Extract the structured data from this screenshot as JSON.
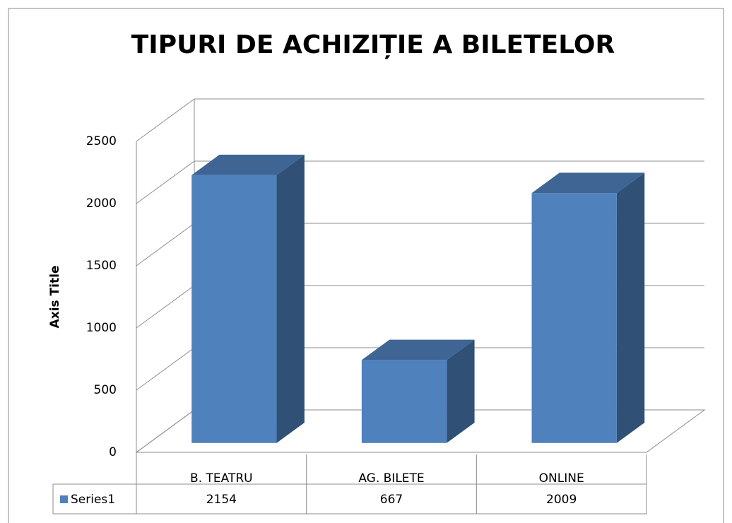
{
  "chart_data": {
    "type": "bar3d",
    "title": "TIPURI DE ACHIZIȚIE A BILETELOR",
    "y_axis_title": "Axis Title",
    "categories": [
      "B. TEATRU",
      "AG. BILETE",
      "ONLINE"
    ],
    "series": [
      {
        "name": "Series1",
        "color": "#4f81bd",
        "values": [
          2154,
          667,
          2009
        ]
      }
    ],
    "ylim": [
      0,
      2500
    ],
    "yticks": [
      0,
      500,
      1000,
      1500,
      2000,
      2500
    ],
    "grid": true
  }
}
